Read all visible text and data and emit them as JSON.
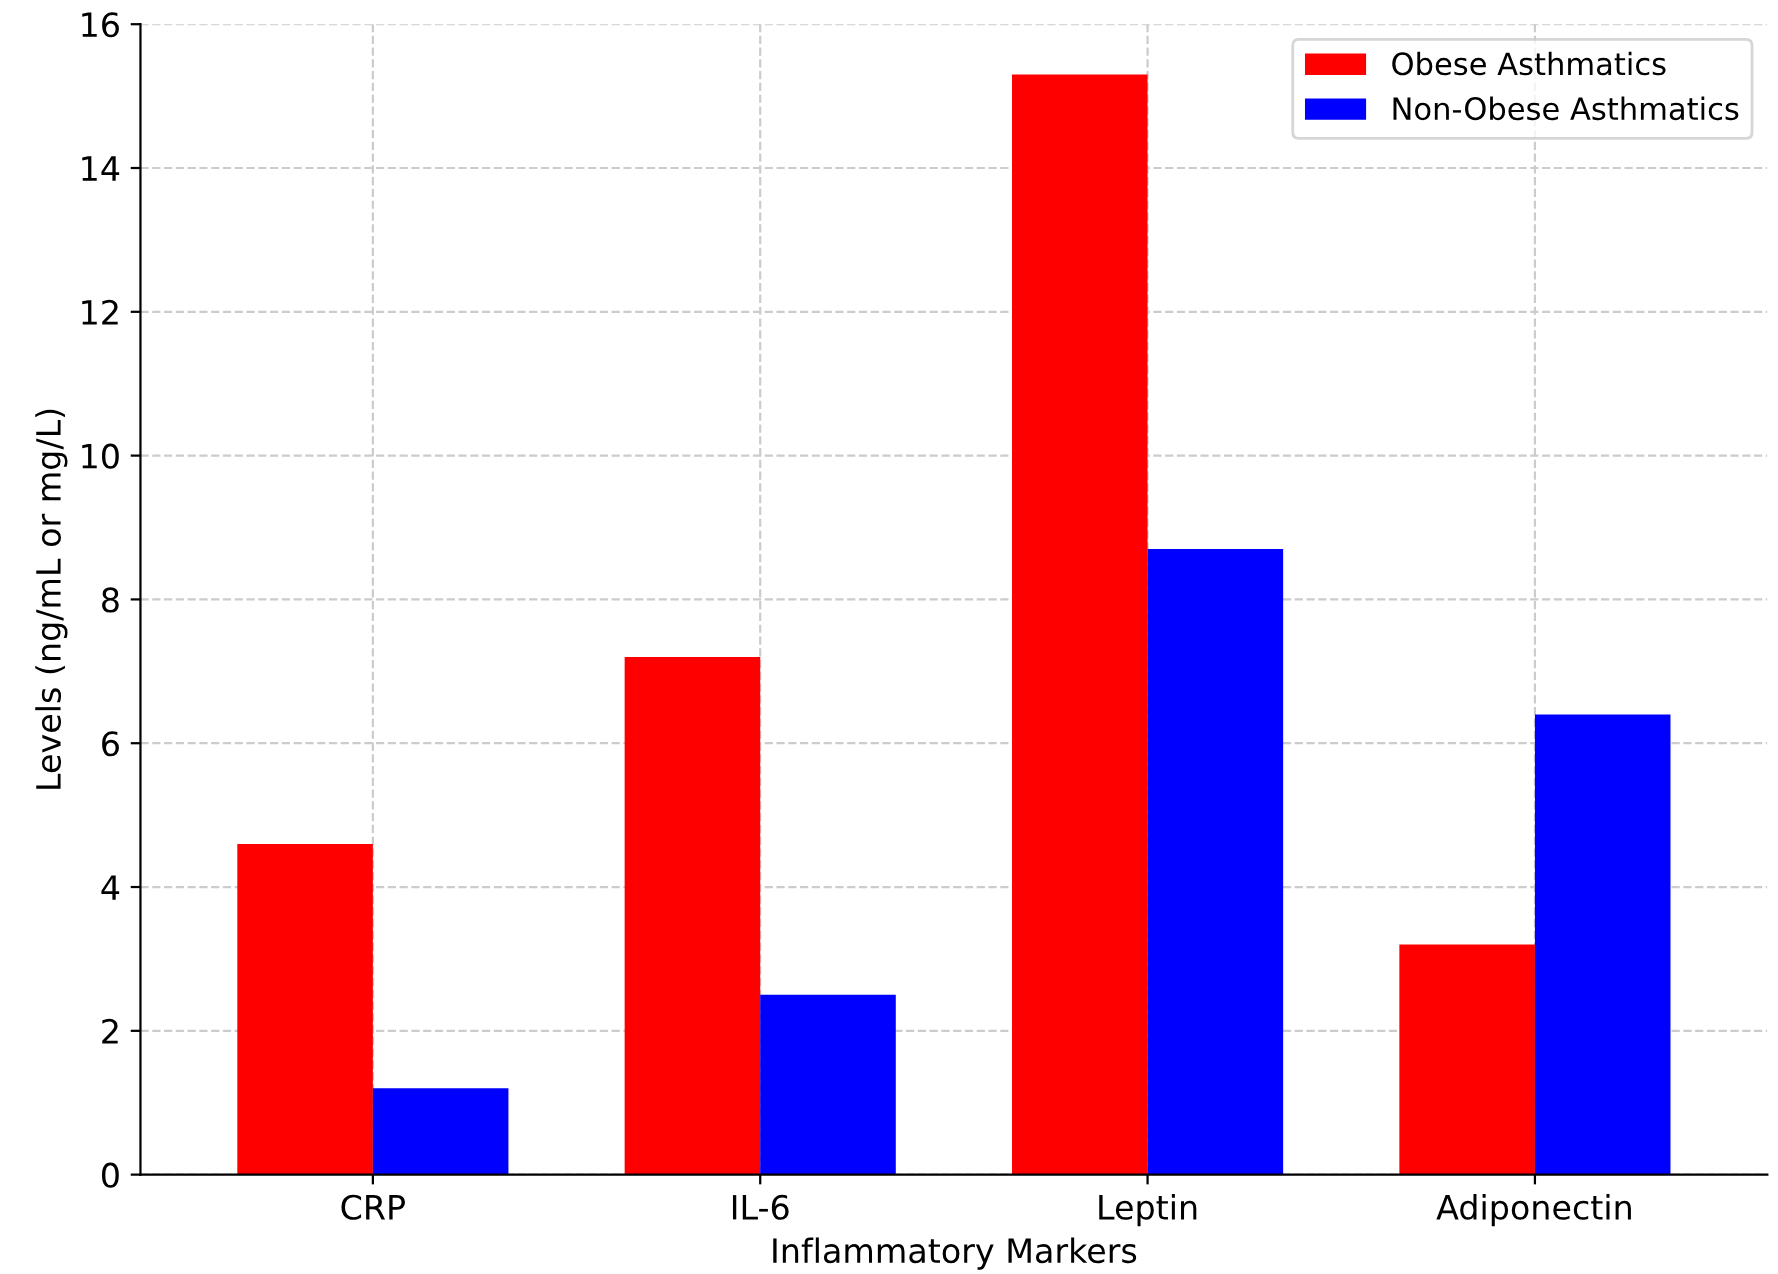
{
  "chart_data": {
    "type": "bar",
    "xlabel": "Inflammatory Markers",
    "ylabel": "Levels (ng/mL or mg/L)",
    "categories": [
      "CRP",
      "IL-6",
      "Leptin",
      "Adiponectin"
    ],
    "series": [
      {
        "name": "Obese Asthmatics",
        "color": "#ff0000",
        "values": [
          4.6,
          7.2,
          15.3,
          3.2
        ]
      },
      {
        "name": "Non-Obese Asthmatics",
        "color": "#0000ff",
        "values": [
          1.2,
          2.5,
          8.7,
          6.4
        ]
      }
    ],
    "ylim": [
      0,
      16
    ],
    "yticks": [
      0,
      2,
      4,
      6,
      8,
      10,
      12,
      14,
      16
    ],
    "grid": true,
    "legend": "top right"
  }
}
